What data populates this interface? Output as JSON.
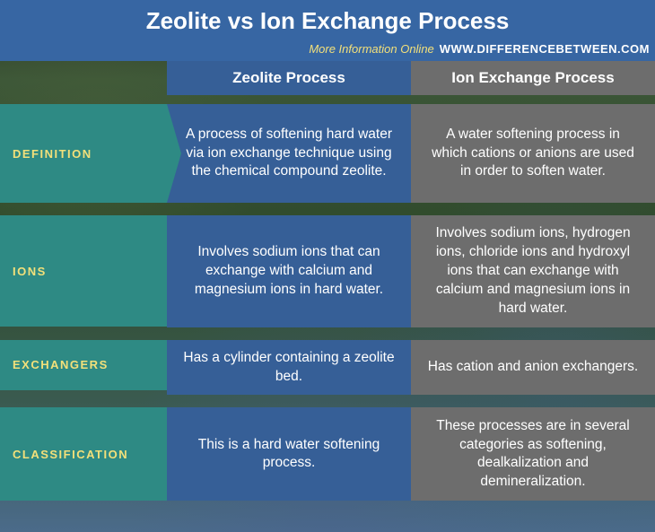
{
  "title": "Zeolite vs Ion Exchange Process",
  "subheader": {
    "more": "More Information  Online",
    "url": "WWW.DIFFERENCEBETWEEN.COM"
  },
  "columns": {
    "left": "Zeolite Process",
    "right": "Ion Exchange Process"
  },
  "colors": {
    "header_bg": "#3766a3",
    "label_bg": "#2e8a84",
    "label_text": "#f3e07a",
    "blue_cell": "#365f97",
    "gray_cell": "#6d6d6d",
    "cell_text": "#ffffff"
  },
  "rows": [
    {
      "label": "DEFINITION",
      "left": "A process of softening hard water via ion exchange technique using the chemical compound zeolite.",
      "right": "A water softening process in which cations or anions are used in order to soften water."
    },
    {
      "label": "IONS",
      "left": "Involves sodium ions that can exchange with calcium and magnesium ions in hard water.",
      "right": "Involves sodium ions, hydrogen ions, chloride ions and hydroxyl ions that  can exchange with calcium and magnesium ions in hard water."
    },
    {
      "label": "EXCHANGERS",
      "left": "Has a cylinder containing a zeolite bed.",
      "right": "Has cation and anion exchangers."
    },
    {
      "label": "CLASSIFICATION",
      "left": "This is a hard water softening process.",
      "right": "These processes are in several categories as softening, dealkalization and demineralization."
    }
  ],
  "typography": {
    "title_fontsize": 26,
    "cell_fontsize": 15.5,
    "label_fontsize": 13
  }
}
